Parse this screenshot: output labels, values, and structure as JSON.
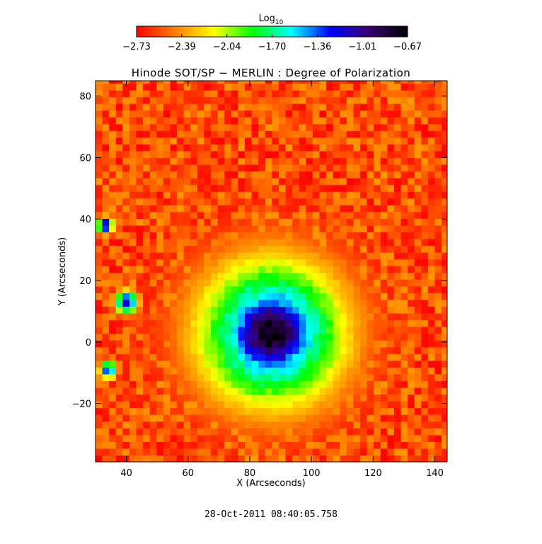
{
  "chart_data": {
    "type": "heatmap",
    "title": "Hinode SOT/SP − MERLIN : Degree of Polarization",
    "xlabel": "X (Arcseconds)",
    "ylabel": "Y (Arcseconds)",
    "xlim": [
      30,
      144
    ],
    "ylim": [
      -39,
      85
    ],
    "xticks": [
      40,
      60,
      80,
      100,
      120,
      140
    ],
    "yticks": [
      -20,
      0,
      20,
      40,
      60,
      80
    ],
    "colorbar": {
      "label_main": "Log",
      "label_sub": "10",
      "range": [
        -2.73,
        -0.67
      ],
      "ticks": [
        "−2.73",
        "−2.39",
        "−2.04",
        "−1.70",
        "−1.36",
        "−1.01",
        "−0.67"
      ],
      "colormap": "rainbow (red → yellow → green → cyan → blue → violet → black)",
      "colors": [
        "#ff0000",
        "#ff8000",
        "#ffff00",
        "#00ff00",
        "#00ffff",
        "#0000ff",
        "#3a0070",
        "#000000"
      ]
    },
    "features": [
      {
        "type": "sunspot umbra",
        "center": [
          86,
          2
        ],
        "radius": 17,
        "value": -0.67
      },
      {
        "type": "penumbra",
        "center": [
          86,
          2
        ],
        "radius": 26,
        "value": -1.2
      },
      {
        "type": "pore",
        "center": [
          39,
          12
        ],
        "radius": 4,
        "value": -1.1
      },
      {
        "type": "pore",
        "center": [
          32,
          37
        ],
        "radius": 3,
        "value": -1.1
      },
      {
        "type": "pore",
        "center": [
          33,
          -10
        ],
        "radius": 3,
        "value": -1.1
      }
    ],
    "background_value": -2.73,
    "grid": false
  },
  "footer": {
    "timestamp": "28-Oct-2011 08:40:05.758"
  }
}
